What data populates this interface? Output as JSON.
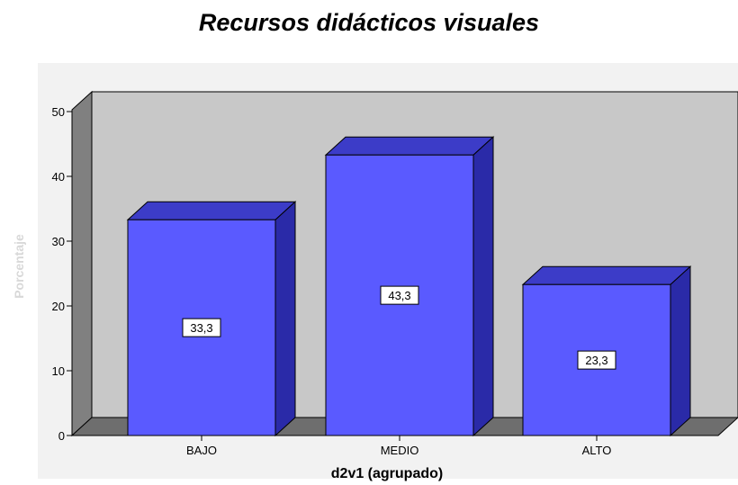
{
  "chart_data": {
    "type": "bar",
    "title": "Recursos didácticos visuales",
    "xlabel": "d2v1 (agrupado)",
    "ylabel": "Porcentaje",
    "categories": [
      "BAJO",
      "MEDIO",
      "ALTO"
    ],
    "values": [
      33.3,
      43.3,
      23.3
    ],
    "data_labels": [
      "33,3",
      "43,3",
      "23,3"
    ],
    "yticks": [
      0,
      10,
      20,
      30,
      40,
      50
    ],
    "ylim": [
      0,
      50
    ],
    "grid": false,
    "style": "3d",
    "colors": {
      "bar_front": "#5a5aff",
      "bar_side": "#2a2aa8",
      "bar_top": "#3c3cc8",
      "back_wall": "#c8c8c8",
      "side_wall": "#808080",
      "floor": "#6e6e6e"
    }
  }
}
